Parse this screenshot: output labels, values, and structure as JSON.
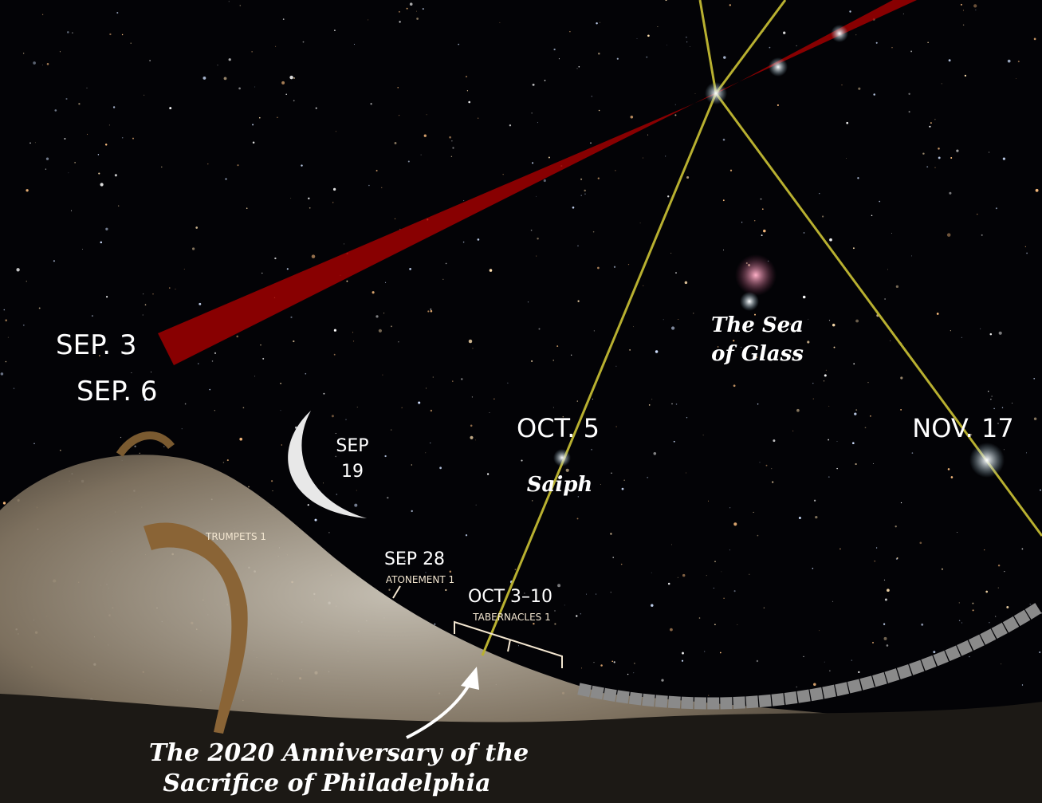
{
  "dates": {
    "sep3": "SEP. 3",
    "sep6": "SEP. 6",
    "sep19_line1": "SEP",
    "sep19_line2": "19",
    "oct5": "OCT. 5",
    "nov17": "NOV. 17",
    "sep28": "SEP 28",
    "oct3_10": "OCT 3–10"
  },
  "feasts": {
    "trumpets": "TRUMPETS 1",
    "atonement": "ATONEMENT 1",
    "tabernacles": "TABERNACLES 1"
  },
  "stars": {
    "saiph": "Saiph",
    "sea_line1": "The Sea",
    "sea_line2": "of Glass"
  },
  "caption": {
    "line1": "The 2020 Anniversary of the",
    "line2": "Sacrifice of Philadelphia"
  }
}
